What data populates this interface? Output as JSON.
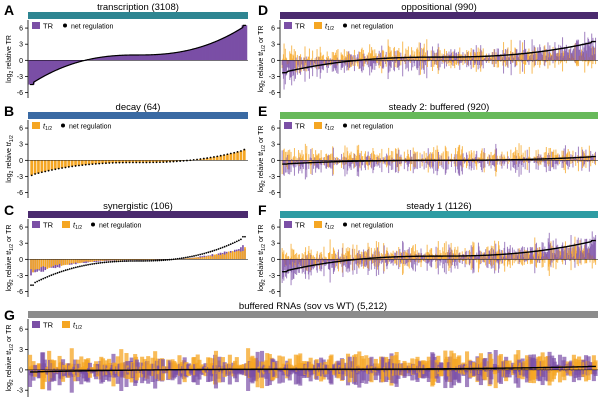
{
  "figure": {
    "legend": {
      "tr": "TR",
      "half": "t",
      "half_sub": "1/2",
      "net": "net regulation"
    }
  },
  "colors": {
    "tr": "#7b4fa6",
    "half": "#f5a623",
    "line": "#000000",
    "bars": {
      "A": "#2e8591",
      "B": "#3a6aa3",
      "C": "#4a2a6e",
      "D": "#4a2a6e",
      "E": "#67b95a",
      "F": "#2e9ca3",
      "G": "#8c8c8c"
    }
  },
  "chart_data": [
    {
      "id": "A",
      "letter": "A",
      "type": "bar",
      "title": "transcription (3108)",
      "ylabel": {
        "pre": "log",
        "sub": "2",
        "post": " relative TR"
      },
      "yticks": [
        6,
        3,
        0,
        -3,
        -6
      ],
      "ylim": [
        -7,
        7.5
      ],
      "series_kind": "tr_only",
      "n_points": 3108,
      "net_range": [
        -4.5,
        6.5
      ],
      "legend_items": [
        "tr",
        "net"
      ]
    },
    {
      "id": "B",
      "letter": "B",
      "type": "bar",
      "title": "decay (64)",
      "ylabel": {
        "pre": "log",
        "sub": "2",
        "post": " relative t",
        "sub2": "1/2"
      },
      "yticks": [
        6,
        3,
        0,
        -3,
        -6
      ],
      "ylim": [
        -7,
        7.5
      ],
      "series_kind": "half_only",
      "n_points": 64,
      "net_range": [
        -2.8,
        2.0
      ],
      "legend_items": [
        "half",
        "net"
      ]
    },
    {
      "id": "C",
      "letter": "C",
      "type": "bar",
      "title": "synergistic (106)",
      "ylabel": {
        "pre": "log",
        "sub": "2",
        "post": " relative t",
        "sub2": "1/2",
        "post2": " or TR"
      },
      "yticks": [
        6,
        3,
        0,
        -3,
        -6
      ],
      "ylim": [
        -7,
        7.5
      ],
      "series_kind": "synergistic",
      "n_points": 106,
      "net_range": [
        -4.8,
        4.2
      ],
      "legend_items": [
        "tr",
        "half",
        "net"
      ]
    },
    {
      "id": "D",
      "letter": "D",
      "type": "bar",
      "title": "oppositional (990)",
      "ylabel": {
        "pre": "log",
        "sub": "2",
        "post": " relative t",
        "sub2": "1/2",
        "post2": " or TR"
      },
      "yticks": [
        6,
        3,
        0,
        -3,
        -6
      ],
      "ylim": [
        -7,
        7.5
      ],
      "series_kind": "oppositional",
      "n_points": 990,
      "net_range": [
        -2.3,
        3.5
      ],
      "legend_items": [
        "tr",
        "half",
        "net"
      ]
    },
    {
      "id": "E",
      "letter": "E",
      "type": "bar",
      "title": "steady 2: buffered (920)",
      "ylabel": {
        "pre": "log",
        "sub": "2",
        "post": " relative t",
        "sub2": "1/2",
        "post2": " or TR"
      },
      "yticks": [
        6,
        3,
        0,
        -3,
        -6
      ],
      "ylim": [
        -7,
        7.5
      ],
      "series_kind": "buffered",
      "n_points": 920,
      "net_range": [
        -0.7,
        0.7
      ],
      "legend_items": [
        "tr",
        "half",
        "net"
      ]
    },
    {
      "id": "F",
      "letter": "F",
      "type": "bar",
      "title": "steady 1 (1126)",
      "ylabel": {
        "pre": "log",
        "sub": "2",
        "post": " relative t",
        "sub2": "1/2",
        "post2": " or TR"
      },
      "yticks": [
        6,
        3,
        0,
        -3,
        -6
      ],
      "ylim": [
        -7,
        7.5
      ],
      "series_kind": "steady1",
      "n_points": 1126,
      "net_range": [
        -2.3,
        3.5
      ],
      "legend_items": [
        "tr",
        "half",
        "net"
      ]
    },
    {
      "id": "G",
      "letter": "G",
      "type": "bar",
      "title": "buffered RNAs (sov vs WT) (5,212)",
      "ylabel": {
        "pre": "log",
        "sub": "2",
        "post": " relative t",
        "sub2": "1/2",
        "post2": " or TR"
      },
      "yticks": [
        6,
        3,
        0,
        -3
      ],
      "ylim": [
        -4,
        7.5
      ],
      "series_kind": "buffered_g",
      "n_points": 5212,
      "net_range": [
        -0.3,
        0.5
      ],
      "legend_items": [
        "tr",
        "half"
      ]
    }
  ]
}
